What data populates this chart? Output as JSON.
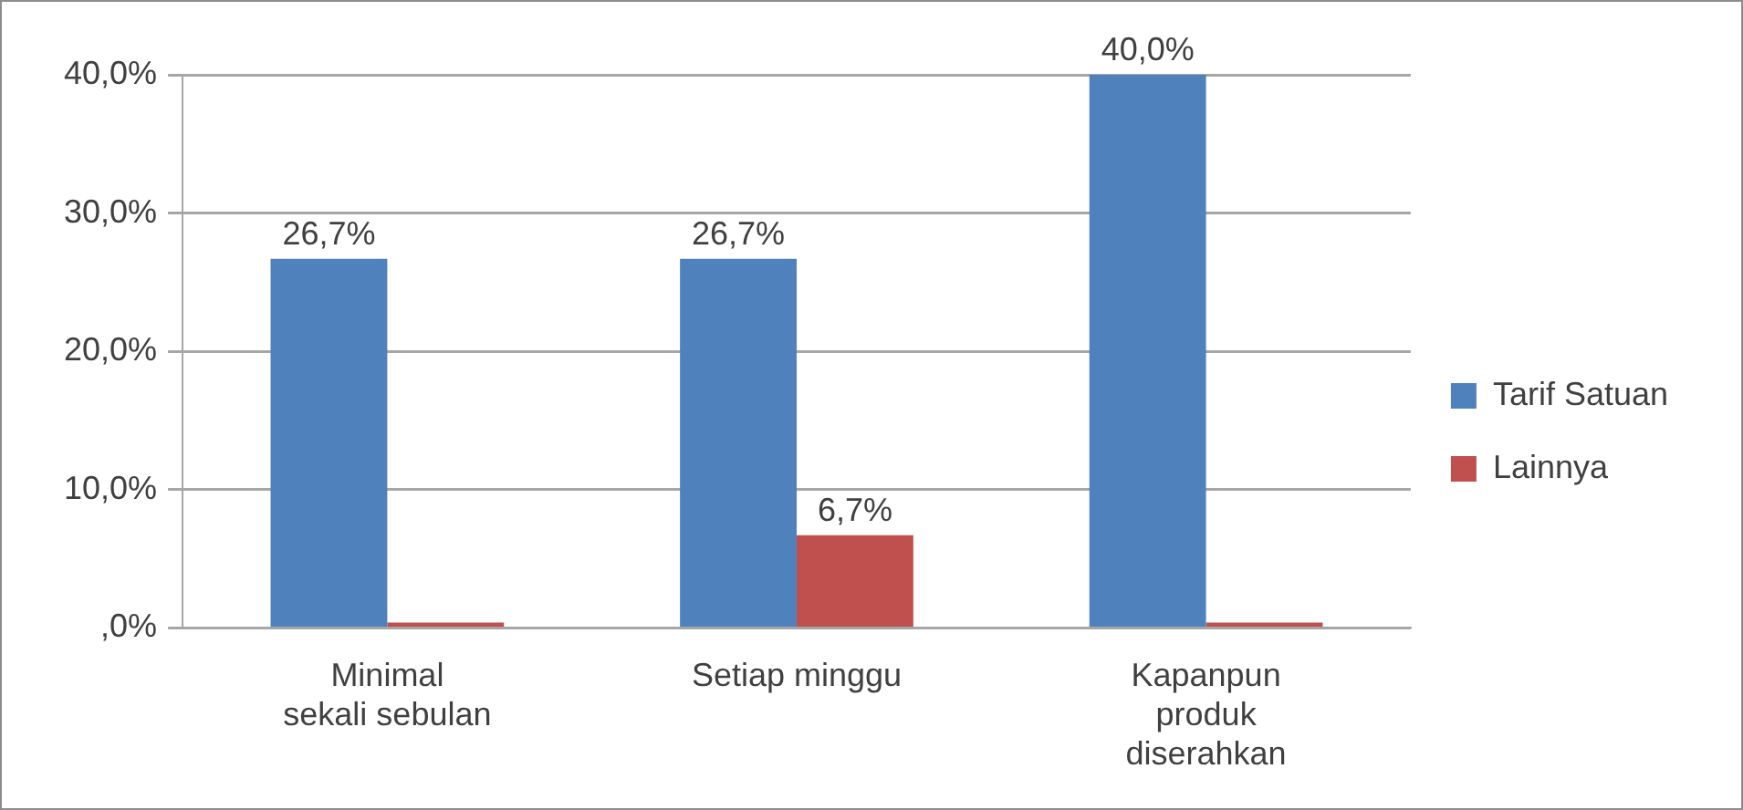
{
  "chart_data": {
    "type": "bar",
    "categories": [
      "Minimal sekali sebulan",
      "Setiap minggu",
      "Kapanpun produk diserahkan"
    ],
    "series": [
      {
        "name": "Tarif Satuan",
        "color": "#4f81bd",
        "values": [
          26.7,
          26.7,
          40.0
        ],
        "value_labels": [
          "26,7%",
          "26,7%",
          "40,0%"
        ]
      },
      {
        "name": "Lainnya",
        "color": "#c0504d",
        "values": [
          0,
          6.7,
          0
        ],
        "value_labels": [
          null,
          "6,7%",
          null
        ]
      }
    ],
    "ylim": [
      0,
      40
    ],
    "yticks": [
      {
        "value": 0,
        "label": ",0%"
      },
      {
        "value": 10,
        "label": "10,0%"
      },
      {
        "value": 20,
        "label": "20,0%"
      },
      {
        "value": 30,
        "label": "30,0%"
      },
      {
        "value": 40,
        "label": "40,0%"
      }
    ],
    "grid": "y",
    "legend": "right"
  }
}
